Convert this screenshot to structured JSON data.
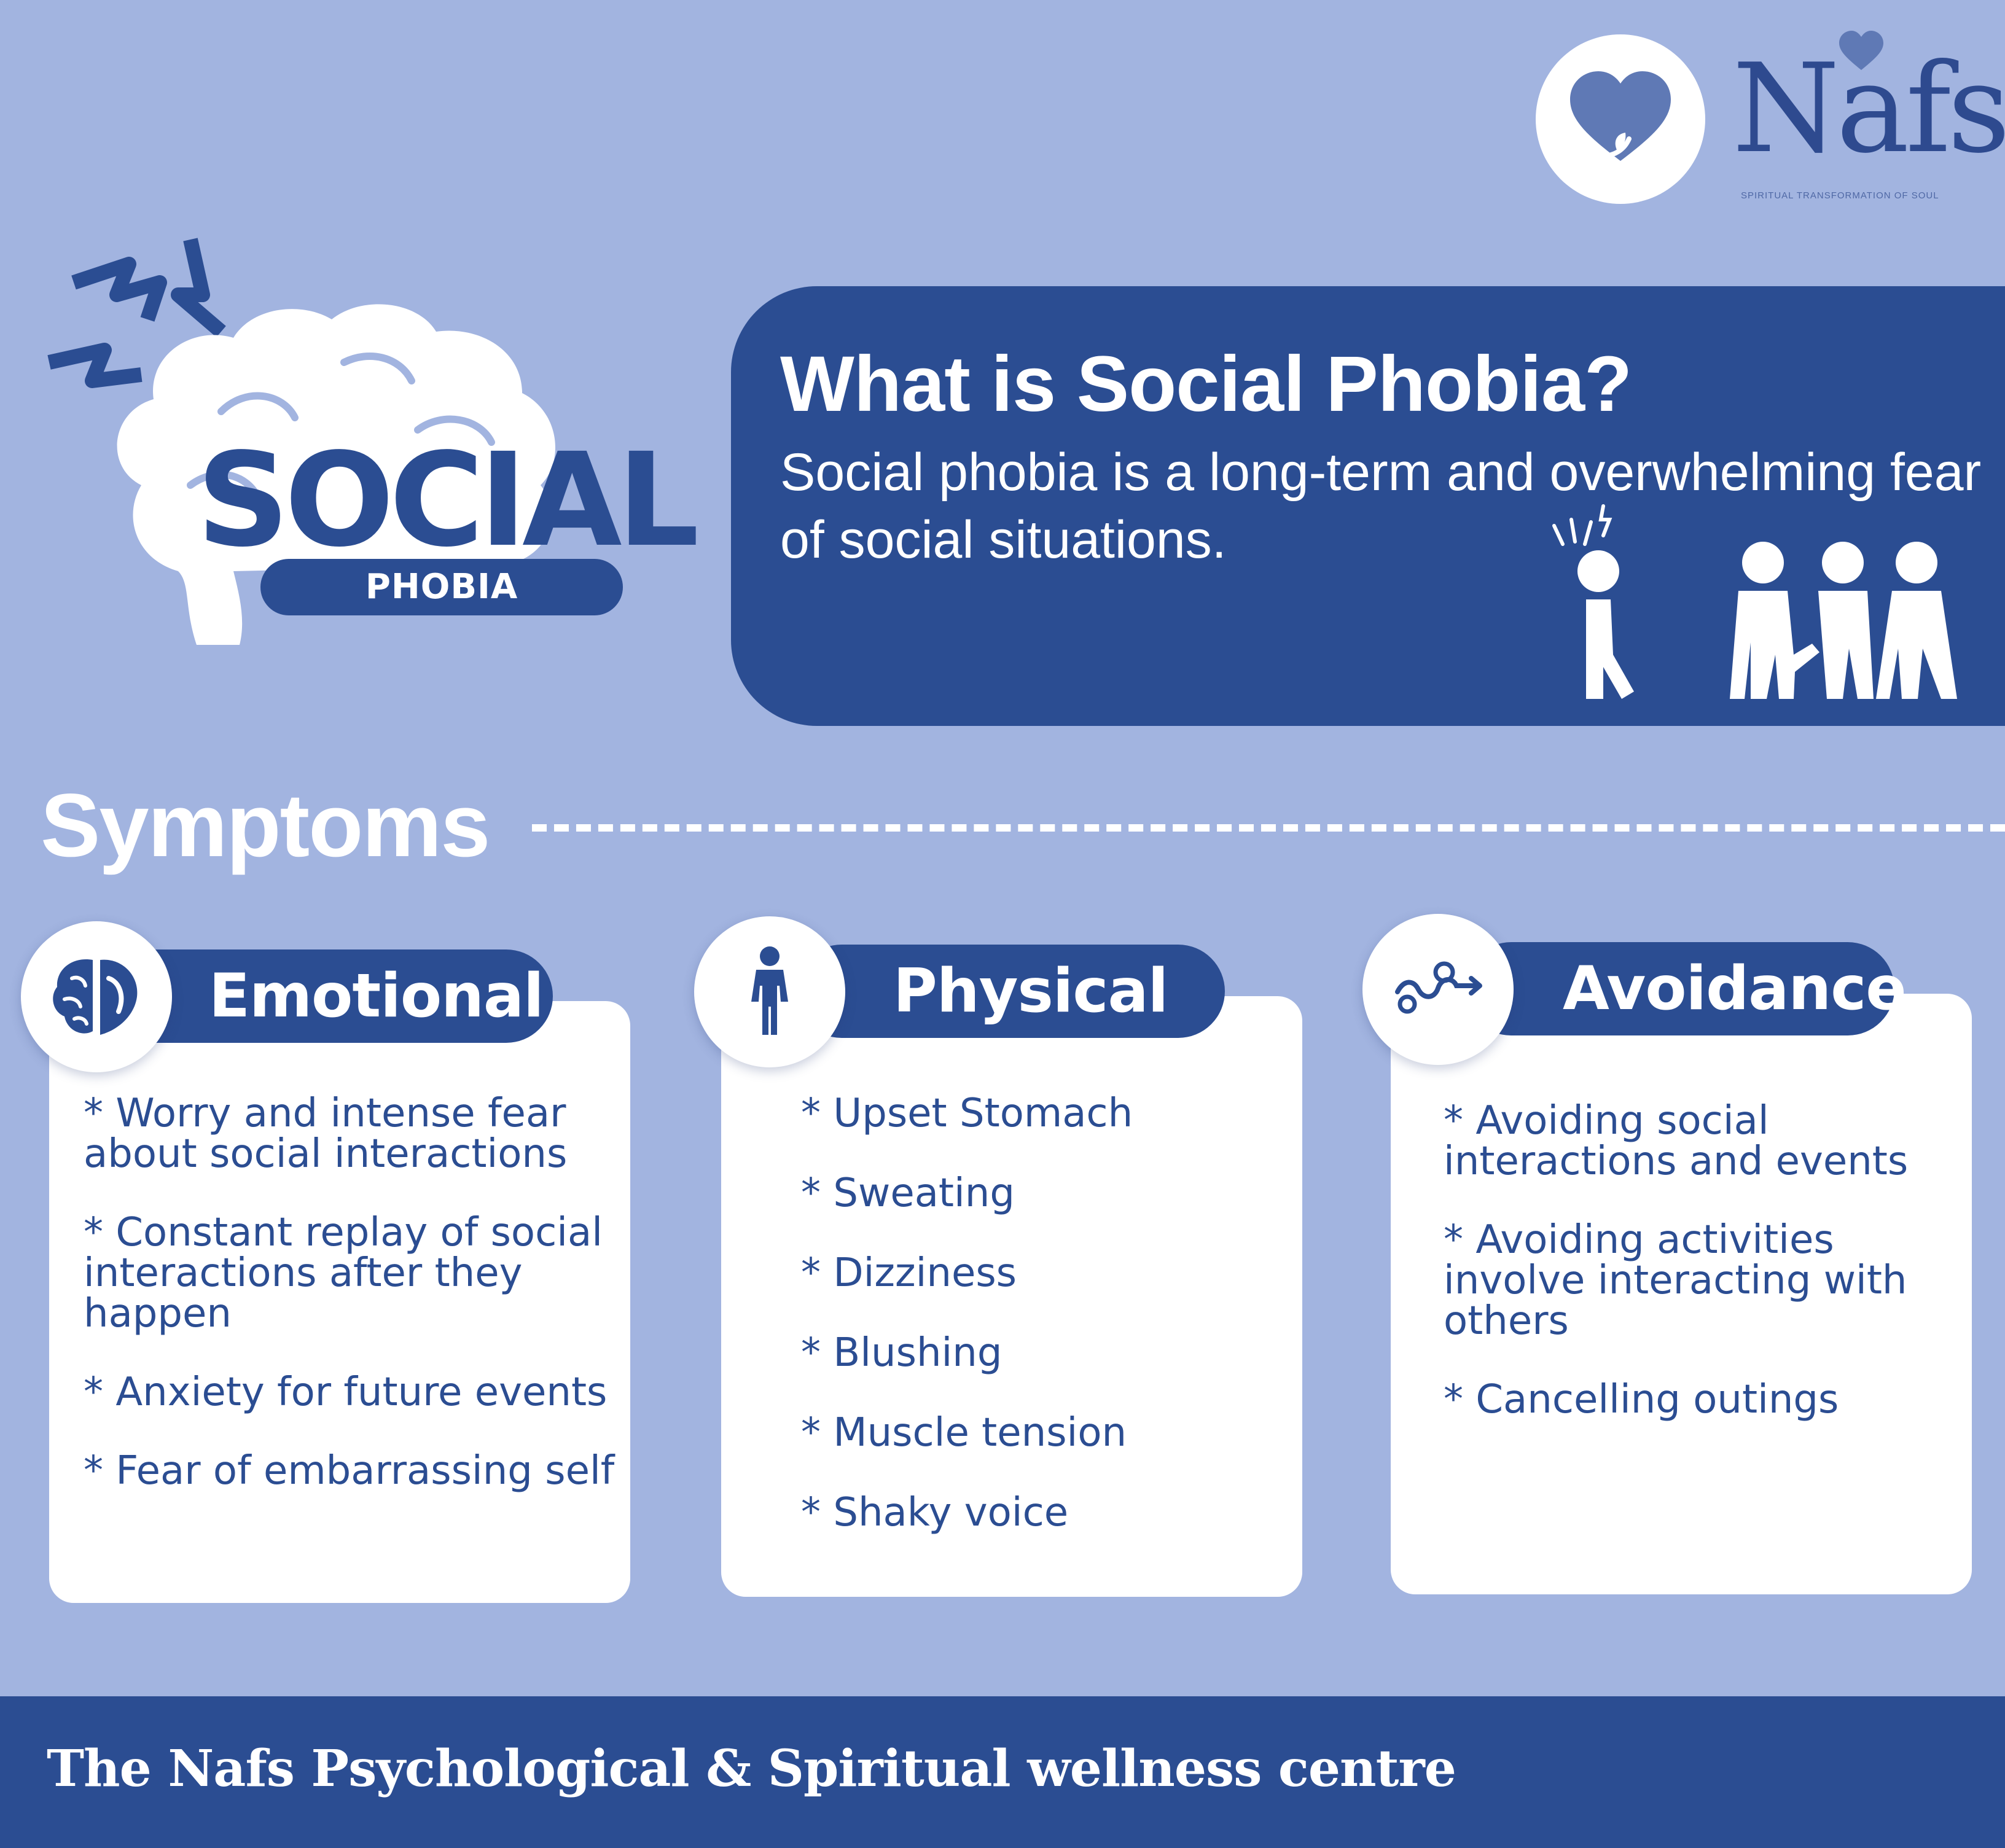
{
  "logo": {
    "wordmark": "Nafs",
    "tagline": "SPIRITUAL TRANSFORMATION OF SOUL",
    "icon": "heart-sprout-icon"
  },
  "hero": {
    "social_word": "SOCIAL",
    "phobia_word": "PHOBIA",
    "icon": "brain-lightning-icon"
  },
  "definition": {
    "title": "What is Social Phobia?",
    "text": "Social phobia is a long-term and overwhelming fear of social situations.",
    "icon": "isolated-person-group-icon"
  },
  "symptoms": {
    "heading": "Symptoms",
    "categories": [
      {
        "title": "Emotional",
        "icon": "brain-heart-icon",
        "items": [
          "* Worry and intense fear\nabout social interactions",
          "* Constant replay of  social\ninteractions after they\nhappen",
          "* Anxiety for future events",
          "* Fear of embarrassing self"
        ]
      },
      {
        "title": "Physical",
        "icon": "person-standing-icon",
        "items": [
          "* Upset Stomach",
          "* Sweating",
          "* Dizziness",
          "* Blushing",
          "* Muscle tension",
          "* Shaky voice"
        ]
      },
      {
        "title": "Avoidance",
        "icon": "winding-path-arrow-icon",
        "items": [
          "* Avoiding social\ninteractions and events",
          "* Avoiding activities\ninvolve interacting with\nothers",
          "* Cancelling outings"
        ]
      }
    ]
  },
  "footer": {
    "text": "The Nafs Psychological & Spiritual wellness centre"
  },
  "colors": {
    "background": "#a2b4e0",
    "primary": "#2b4d92",
    "card": "#ffffff",
    "text_light": "#ffffff"
  }
}
